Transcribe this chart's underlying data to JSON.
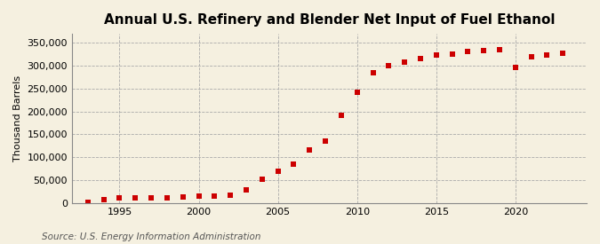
{
  "title": "Annual U.S. Refinery and Blender Net Input of Fuel Ethanol",
  "ylabel": "Thousand Barrels",
  "source": "Source: U.S. Energy Information Administration",
  "background_color": "#f5f0e0",
  "dot_color": "#cc0000",
  "years": [
    1993,
    1994,
    1995,
    1996,
    1997,
    1998,
    1999,
    2000,
    2001,
    2002,
    2003,
    2004,
    2005,
    2006,
    2007,
    2008,
    2009,
    2010,
    2011,
    2012,
    2013,
    2014,
    2015,
    2016,
    2017,
    2018,
    2019,
    2020,
    2021,
    2022,
    2023
  ],
  "values": [
    2200,
    6800,
    10200,
    11000,
    11500,
    11800,
    12500,
    14000,
    15000,
    17000,
    29000,
    52000,
    70000,
    84000,
    115000,
    136000,
    191000,
    242000,
    285000,
    301000,
    309000,
    315000,
    323000,
    325000,
    331000,
    333000,
    335000,
    296000,
    320000,
    323000,
    327000
  ],
  "ylim": [
    0,
    370000
  ],
  "yticks": [
    0,
    50000,
    100000,
    150000,
    200000,
    250000,
    300000,
    350000
  ],
  "xtick_years": [
    1995,
    2000,
    2005,
    2010,
    2015,
    2020
  ],
  "xlim": [
    1992,
    2024.5
  ],
  "grid_color": "#aaaaaa",
  "title_fontsize": 11,
  "axis_fontsize": 8,
  "source_fontsize": 7.5
}
